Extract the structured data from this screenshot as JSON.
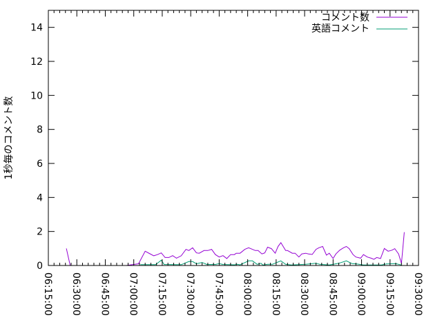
{
  "chart_data": {
    "type": "line",
    "title": "",
    "xlabel": "",
    "ylabel": "1秒毎のコメント数",
    "xlim": [
      "06:15:00",
      "09:30:00"
    ],
    "ylim": [
      0,
      15
    ],
    "x_ticks": [
      "06:15:00",
      "06:30:00",
      "06:45:00",
      "07:00:00",
      "07:15:00",
      "07:30:00",
      "07:45:00",
      "08:00:00",
      "08:15:00",
      "08:30:00",
      "08:45:00",
      "09:00:00",
      "09:15:00",
      "09:30:00"
    ],
    "y_ticks": [
      "0",
      "2",
      "4",
      "6",
      "8",
      "10",
      "12",
      "14"
    ],
    "grid": false,
    "legend_position": "top-right",
    "series": [
      {
        "name": "コメント数",
        "color": "#9400d3",
        "points": [
          [
            "06:24:30",
            1.0
          ],
          [
            "06:26:30",
            0
          ],
          [
            "06:30:30",
            0
          ],
          [
            "06:36:00",
            0
          ],
          [
            null,
            null
          ],
          [
            "06:56:00",
            0
          ],
          [
            "07:02:30",
            0.1
          ],
          [
            "07:06:00",
            0.84
          ],
          [
            "07:08:30",
            0.69
          ],
          [
            "07:10:30",
            0.57
          ],
          [
            "07:12:30",
            0.64
          ],
          [
            "07:14:30",
            0.74
          ],
          [
            "07:16:30",
            0.47
          ],
          [
            "07:18:30",
            0.47
          ],
          [
            "07:20:30",
            0.58
          ],
          [
            "07:22:30",
            0.43
          ],
          [
            "07:25:00",
            0.57
          ],
          [
            "07:27:30",
            0.95
          ],
          [
            "07:29:00",
            0.88
          ],
          [
            "07:31:00",
            1.04
          ],
          [
            "07:33:00",
            0.74
          ],
          [
            "07:34:30",
            0.72
          ],
          [
            "07:37:00",
            0.88
          ],
          [
            "07:39:00",
            0.88
          ],
          [
            "07:41:00",
            0.95
          ],
          [
            "07:43:00",
            0.64
          ],
          [
            "07:45:00",
            0.5
          ],
          [
            "07:47:00",
            0.58
          ],
          [
            "07:49:00",
            0.41
          ],
          [
            "07:51:00",
            0.64
          ],
          [
            "07:53:00",
            0.64
          ],
          [
            "07:54:00",
            0.72
          ],
          [
            "07:56:00",
            0.72
          ],
          [
            "07:58:30",
            0.95
          ],
          [
            "08:00:30",
            1.04
          ],
          [
            "08:02:30",
            0.95
          ],
          [
            "08:04:00",
            0.88
          ],
          [
            "08:05:30",
            0.88
          ],
          [
            "08:07:30",
            0.68
          ],
          [
            "08:09:00",
            0.74
          ],
          [
            "08:10:30",
            1.08
          ],
          [
            "08:12:30",
            0.99
          ],
          [
            "08:14:30",
            0.72
          ],
          [
            "08:16:00",
            1.12
          ],
          [
            "08:17:30",
            1.34
          ],
          [
            "08:20:00",
            0.88
          ],
          [
            "08:21:00",
            0.88
          ],
          [
            "08:23:30",
            0.72
          ],
          [
            "08:25:00",
            0.72
          ],
          [
            "08:27:00",
            0.5
          ],
          [
            "08:28:30",
            0.68
          ],
          [
            "08:30:30",
            0.72
          ],
          [
            "08:32:00",
            0.68
          ],
          [
            "08:34:00",
            0.65
          ],
          [
            "08:36:00",
            0.95
          ],
          [
            "08:37:30",
            1.04
          ],
          [
            "08:39:30",
            1.12
          ],
          [
            "08:41:30",
            0.61
          ],
          [
            "08:43:00",
            0.72
          ],
          [
            "08:45:00",
            0.41
          ],
          [
            "08:46:30",
            0.68
          ],
          [
            "08:48:30",
            0.9
          ],
          [
            "08:50:30",
            1.04
          ],
          [
            "08:52:00",
            1.12
          ],
          [
            "08:53:30",
            0.99
          ],
          [
            "08:55:30",
            0.64
          ],
          [
            "08:57:00",
            0.5
          ],
          [
            "08:59:30",
            0.43
          ],
          [
            "09:01:00",
            0.64
          ],
          [
            "09:03:00",
            0.5
          ],
          [
            "09:05:00",
            0.43
          ],
          [
            "09:06:30",
            0.36
          ],
          [
            "09:08:00",
            0.47
          ],
          [
            "09:10:00",
            0.41
          ],
          [
            "09:12:00",
            1.0
          ],
          [
            "09:14:00",
            0.84
          ],
          [
            "09:16:00",
            0.9
          ],
          [
            "09:17:30",
            0.99
          ],
          [
            "09:19:30",
            0.68
          ],
          [
            "09:21:00",
            0.12
          ],
          [
            "09:22:30",
            1.96
          ]
        ]
      },
      {
        "name": "英語コメント",
        "color": "#009e73",
        "points": [
          [
            "07:03:30",
            0.05
          ],
          [
            "07:11:30",
            0.05
          ],
          [
            "07:14:30",
            0.31
          ],
          [
            "07:16:00",
            0.06
          ],
          [
            "07:25:00",
            0.05
          ],
          [
            "07:29:00",
            0.23
          ],
          [
            "07:31:00",
            0.23
          ],
          [
            "07:33:00",
            0.1
          ],
          [
            "07:36:00",
            0.18
          ],
          [
            "07:38:30",
            0.06
          ],
          [
            "07:43:00",
            0.06
          ],
          [
            "07:45:00",
            0.11
          ],
          [
            "07:47:00",
            0.06
          ],
          [
            "07:53:00",
            0.04
          ],
          [
            "07:54:30",
            0.07
          ],
          [
            "07:56:00",
            0.04
          ],
          [
            "08:00:30",
            0.27
          ],
          [
            "08:02:30",
            0.27
          ],
          [
            "08:05:00",
            0.07
          ],
          [
            "08:07:00",
            0.13
          ],
          [
            "08:08:00",
            0.03
          ],
          [
            "08:10:30",
            0.07
          ],
          [
            "08:13:00",
            0.07
          ],
          [
            "08:17:30",
            0.27
          ],
          [
            "08:20:00",
            0.07
          ],
          [
            "08:23:00",
            0.03
          ],
          [
            "08:30:30",
            0.07
          ],
          [
            "08:36:00",
            0.13
          ],
          [
            "08:38:00",
            0.07
          ],
          [
            "08:43:00",
            0.03
          ],
          [
            "08:48:00",
            0.13
          ],
          [
            "08:52:00",
            0.27
          ],
          [
            "08:55:00",
            0.11
          ],
          [
            "08:57:30",
            0.09
          ],
          [
            "09:01:00",
            0.03
          ],
          [
            "09:10:30",
            0.03
          ],
          [
            "09:13:00",
            0.09
          ],
          [
            "09:18:00",
            0.11
          ],
          [
            "09:21:00",
            0.03
          ]
        ]
      }
    ]
  }
}
